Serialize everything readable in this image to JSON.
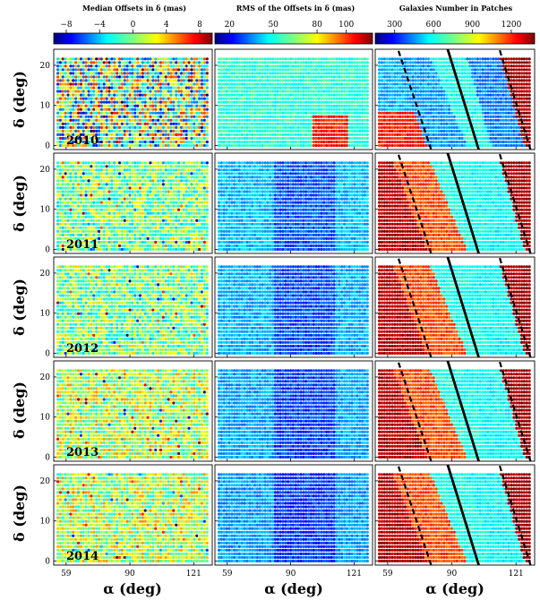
{
  "chart_data": {
    "type": "heatmap",
    "colorbars": [
      {
        "title": "Median Offsets in δ (mas)",
        "ticks": [
          "−8",
          "−4",
          "0",
          "4",
          "8"
        ],
        "tick_values": [
          -8,
          -4,
          0,
          4,
          8
        ],
        "range": [
          -9.5,
          9.5
        ]
      },
      {
        "title": "RMS of the Offsets in δ (mas)",
        "ticks": [
          "20",
          "50",
          "80",
          "100"
        ],
        "tick_values": [
          20,
          50,
          80,
          100
        ],
        "range": [
          10,
          118
        ]
      },
      {
        "title": "Galaxies Number in Patches",
        "ticks": [
          "300",
          "600",
          "900",
          "1200"
        ],
        "tick_values": [
          300,
          600,
          900,
          1200
        ],
        "range": [
          150,
          1380
        ]
      }
    ],
    "xlabel": "α (deg)",
    "ylabel": "δ (deg)",
    "x_ticks": [
      "59",
      "90",
      "121"
    ],
    "x_tick_values": [
      59,
      90,
      121
    ],
    "y_ticks": [
      "0",
      "10",
      "20"
    ],
    "y_tick_values": [
      0,
      10,
      20
    ],
    "xlim": [
      53,
      130
    ],
    "ylim": [
      -1,
      24
    ],
    "rows": [
      "2010",
      "2011",
      "2012",
      "2013",
      "2014"
    ],
    "columns": [
      "Median Offsets in δ",
      "RMS of the Offsets in δ",
      "Galaxies Number in Patches"
    ]
  }
}
